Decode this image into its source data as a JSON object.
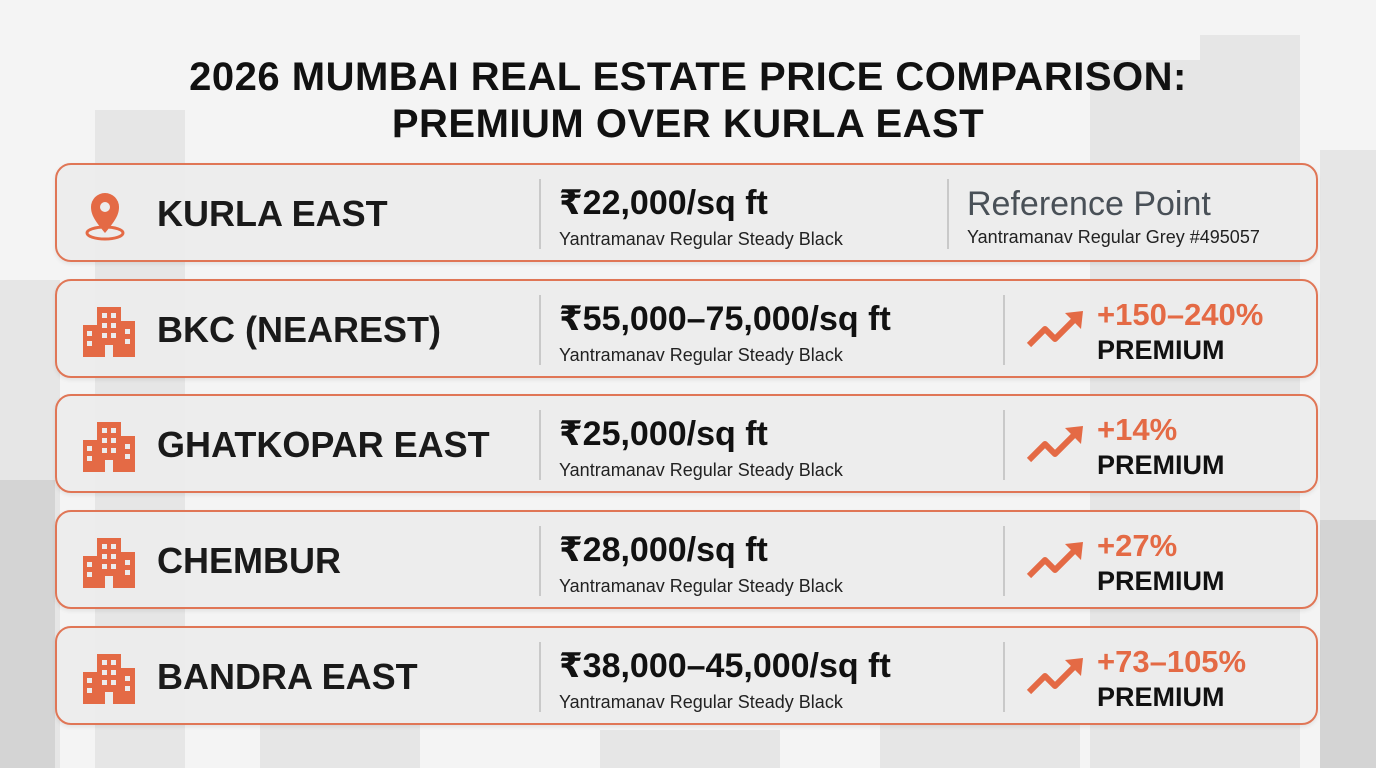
{
  "title": [
    "2026 MUMBAI REAL ESTATE PRICE COMPARISON:",
    "PREMIUM OVER KURLA EAST"
  ],
  "rows": [
    {
      "name": "KURLA EAST",
      "price": "₹22,000/sq ft",
      "note": "Yantramanav Regular Steady Black",
      "status": "Reference Point",
      "status_note": "Yantramanav Regular Grey #495057"
    },
    {
      "name": "BKC (NEAREST)",
      "price": "₹55,000–75,000/sq ft",
      "note": "Yantramanav Regular Steady Black",
      "premium": "+150–240%",
      "premium_label": "PREMIUM"
    },
    {
      "name": "GHATKOPAR EAST",
      "price": "₹25,000/sq ft",
      "note": "Yantramanav Regular Steady Black",
      "premium": "+14%",
      "premium_label": "PREMIUM"
    },
    {
      "name": "CHEMBUR",
      "price": "₹28,000/sq ft",
      "note": "Yantramanav Regular Steady Black",
      "premium": "+27%",
      "premium_label": "PREMIUM"
    },
    {
      "name": "BANDRA EAST",
      "price": "₹38,000–45,000/sq ft",
      "note": "Yantramanav Regular Steady Black",
      "premium": "+73–105%",
      "premium_label": "PREMIUM"
    }
  ]
}
